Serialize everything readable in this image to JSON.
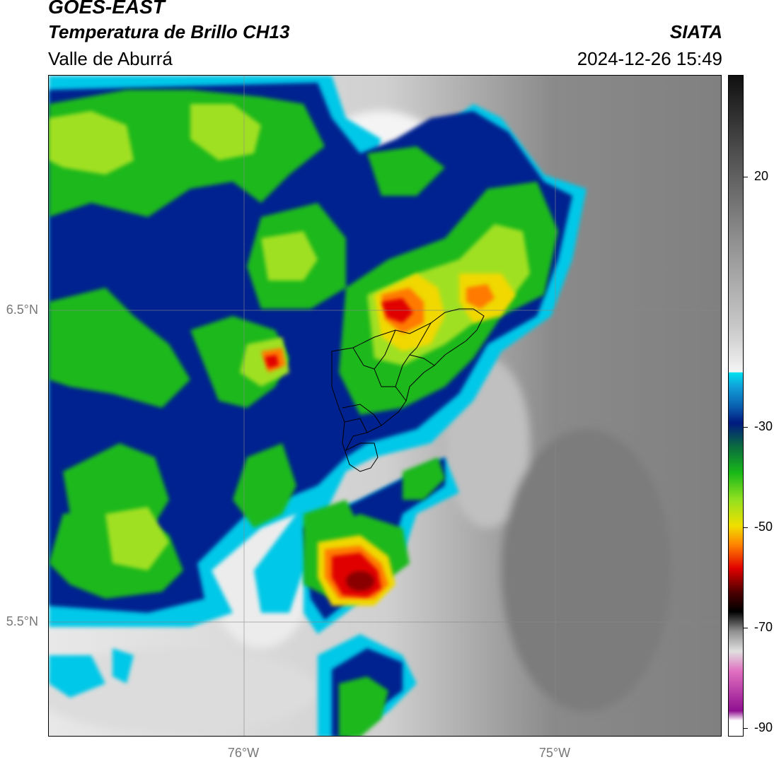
{
  "header": {
    "satellite": "GOES-EAST",
    "product": "Temperatura de Brillo CH13",
    "region": "Valle de Aburrá",
    "agency": "SIATA",
    "datetime": "2024-12-26 15:49"
  },
  "axes": {
    "lat_labels": [
      "6.5°N",
      "5.5°N"
    ],
    "lon_labels": [
      "76°W",
      "75°W"
    ]
  },
  "colorbar": {
    "ticks": [
      "20",
      "-30",
      "-50",
      "-70",
      "-90"
    ],
    "colors": {
      "warm_top": "#1a1a1a",
      "warm_mid": "#808080",
      "warm_low": "#f0f0f0",
      "cyan": "#00d8f0",
      "blue": "#0a5fb0",
      "navy": "#001a80",
      "green": "#18b818",
      "lime": "#90e020",
      "yellow": "#f0e000",
      "orange": "#ff8000",
      "red": "#e00000",
      "darkred": "#500000",
      "black": "#000000",
      "pink": "#e070c0",
      "purple": "#901090",
      "white": "#ffffff"
    }
  }
}
